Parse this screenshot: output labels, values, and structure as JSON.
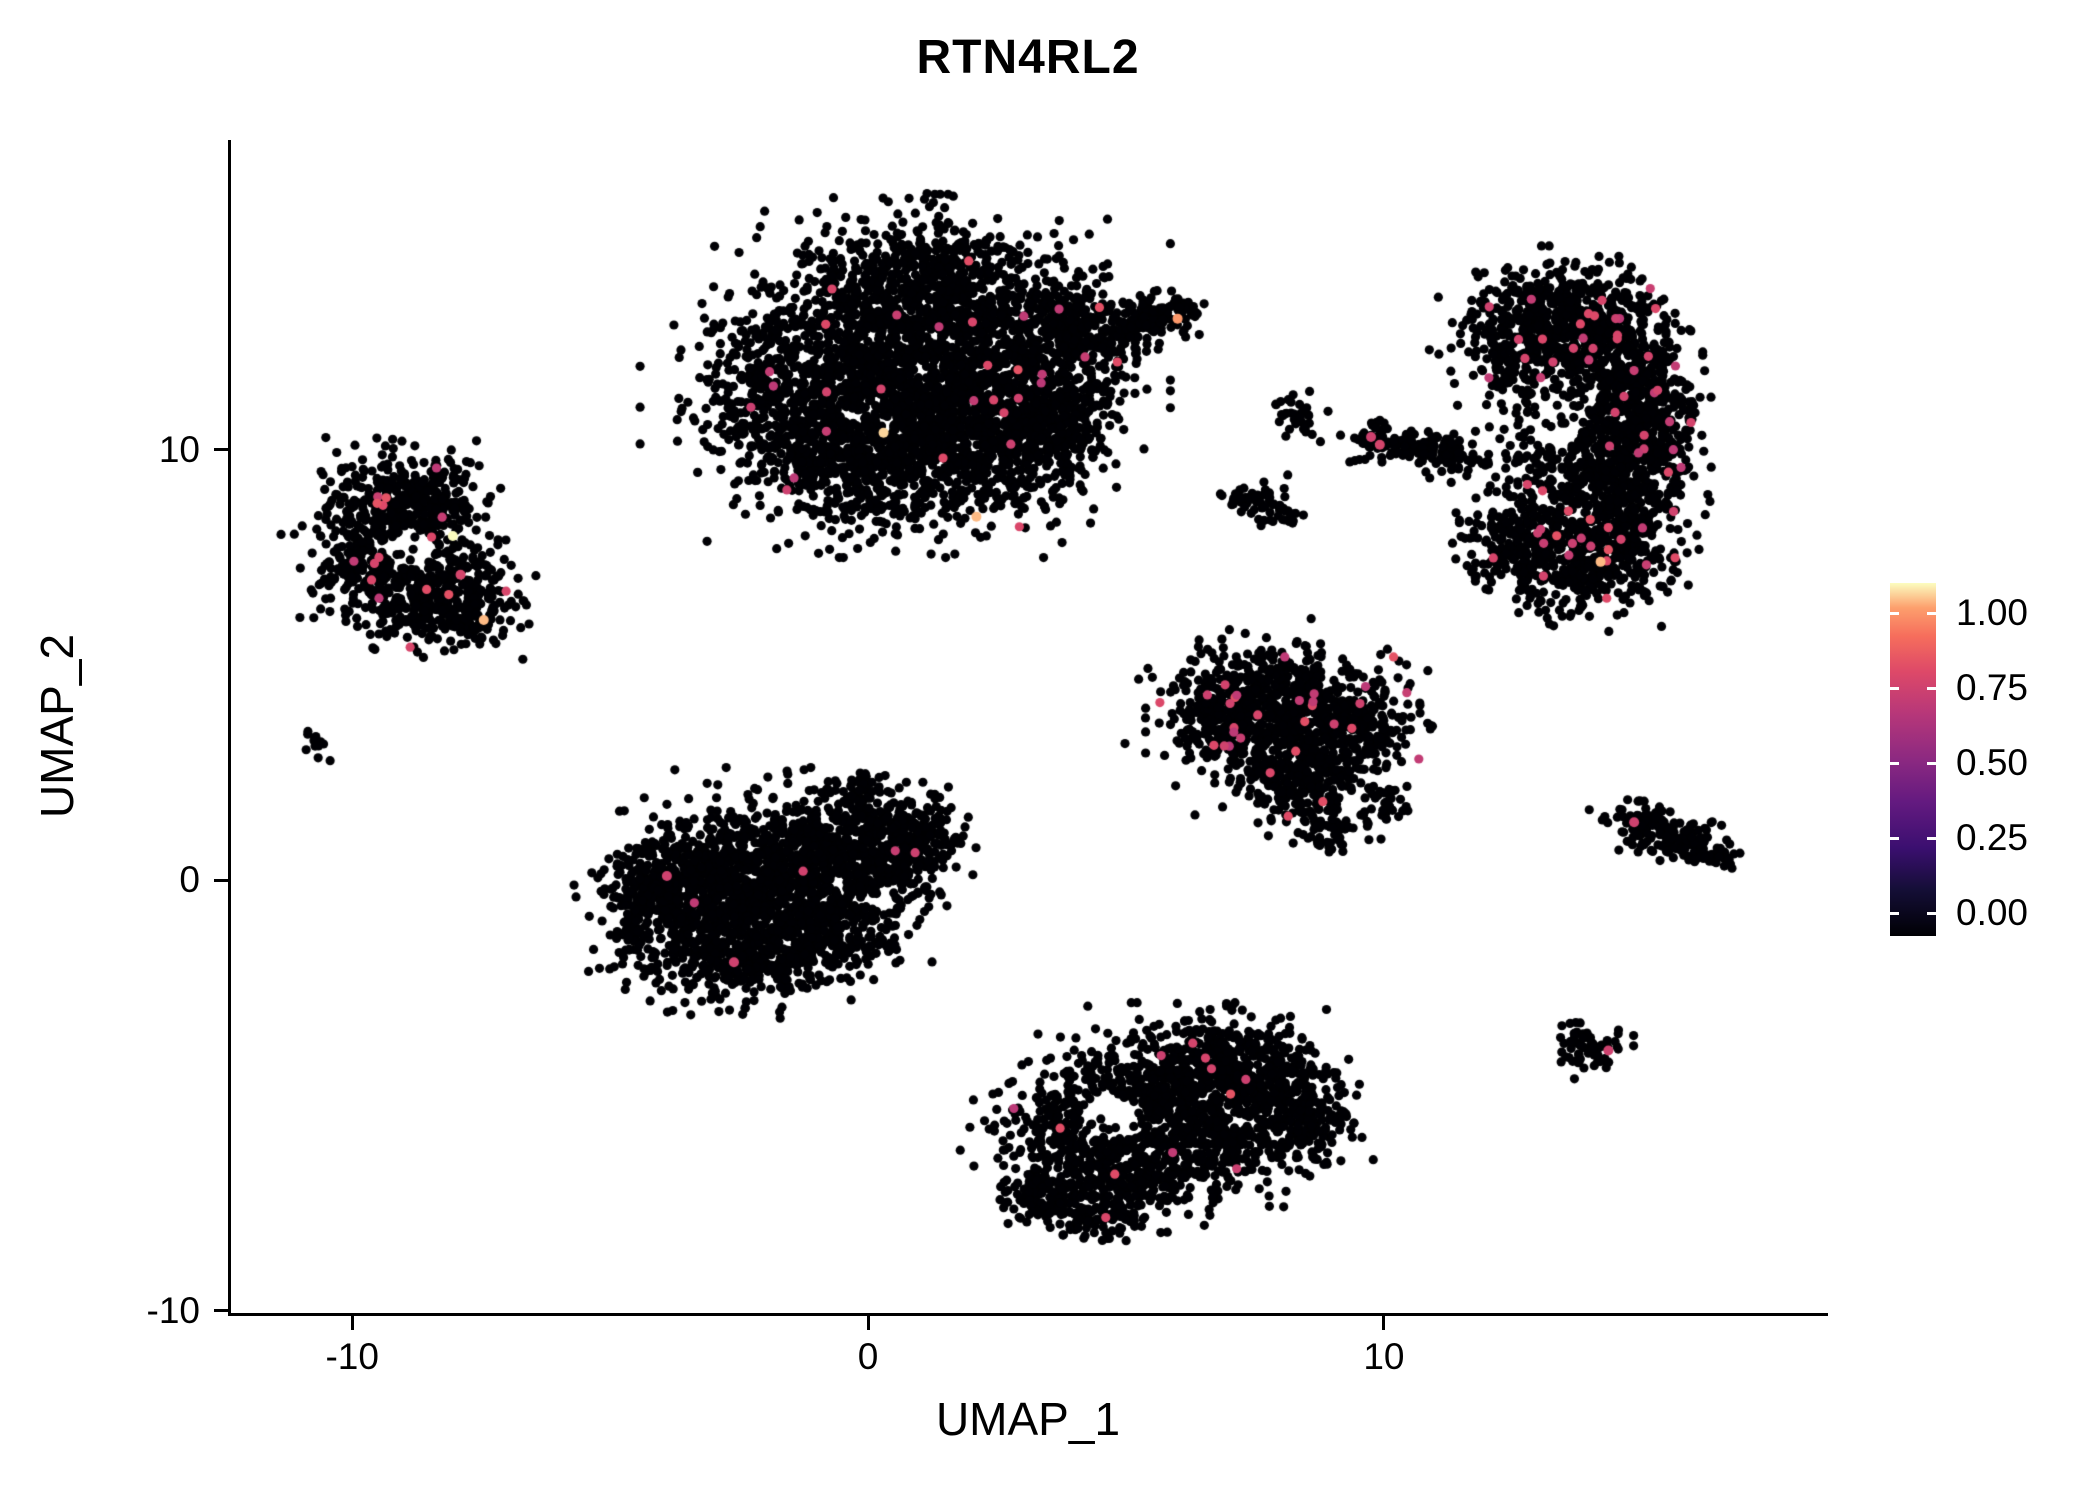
{
  "figure": {
    "background": "#ffffff"
  },
  "chart_data": {
    "type": "scatter",
    "title": "RTN4RL2",
    "xlabel": "UMAP_1",
    "ylabel": "UMAP_2",
    "xlim": [
      -12.35,
      18.55
    ],
    "ylim": [
      -10.05,
      17.2
    ],
    "x_ticks": [
      -10,
      0,
      10
    ],
    "y_ticks": [
      10,
      0,
      -10
    ],
    "grid": false,
    "point_radius_px": 4.6,
    "point_base_color": "#000004",
    "expr_value_range": [
      0.64,
      0.78
    ],
    "colorbar": {
      "position": "right",
      "ticks": [
        "1.00",
        "0.75",
        "0.50",
        "0.25",
        "0.00"
      ],
      "stops": [
        [
          0.0,
          "#000004"
        ],
        [
          0.13,
          "#140E36"
        ],
        [
          0.25,
          "#3B0F70"
        ],
        [
          0.38,
          "#641A80"
        ],
        [
          0.5,
          "#8C2981"
        ],
        [
          0.63,
          "#B73779"
        ],
        [
          0.75,
          "#DE4968"
        ],
        [
          0.85,
          "#F66E5C"
        ],
        [
          0.93,
          "#FD9F6D"
        ],
        [
          1.0,
          "#FCFDBF"
        ]
      ]
    },
    "clusters": [
      {
        "name": "top-center",
        "lobes": [
          [
            -0.5,
            11.5,
            1.4,
            1.4,
            700
          ],
          [
            1.0,
            12.3,
            1.5,
            1.3,
            800
          ],
          [
            2.5,
            12.0,
            1.2,
            1.2,
            600
          ],
          [
            1.5,
            10.3,
            1.5,
            1.0,
            550
          ],
          [
            0.0,
            9.6,
            1.0,
            0.7,
            300
          ],
          [
            2.8,
            9.9,
            0.8,
            0.7,
            250
          ],
          [
            1.2,
            13.9,
            1.2,
            0.7,
            350
          ],
          [
            -1.8,
            10.8,
            0.7,
            0.8,
            200
          ],
          [
            3.6,
            11.0,
            0.6,
            0.7,
            150
          ],
          [
            3.9,
            12.8,
            0.5,
            0.5,
            120
          ],
          [
            4.6,
            12.6,
            0.45,
            0.35,
            90
          ],
          [
            5.3,
            13.0,
            0.4,
            0.25,
            70
          ],
          [
            5.9,
            13.3,
            0.3,
            0.2,
            50
          ],
          [
            1.3,
            15.7,
            0.3,
            0.25,
            6
          ]
        ],
        "holes": [],
        "expr_frac": 0.01
      },
      {
        "name": "left",
        "lobes": [
          [
            -9.4,
            8.5,
            0.7,
            0.7,
            260
          ],
          [
            -8.5,
            8.9,
            0.55,
            0.5,
            180
          ],
          [
            -9.7,
            7.3,
            0.6,
            0.55,
            200
          ],
          [
            -8.2,
            7.1,
            0.6,
            0.6,
            200
          ],
          [
            -7.7,
            6.3,
            0.45,
            0.45,
            130
          ],
          [
            -8.9,
            6.3,
            0.55,
            0.4,
            130
          ]
        ],
        "holes": [
          [
            -8.9,
            7.7,
            0.5,
            0.45
          ]
        ],
        "expr_frac": 0.018
      },
      {
        "name": "tiny-left",
        "lobes": [
          [
            -10.75,
            3.2,
            0.12,
            0.15,
            14
          ]
        ],
        "holes": [],
        "expr_frac": 0
      },
      {
        "name": "center-left",
        "lobes": [
          [
            -3.4,
            -0.6,
            0.9,
            0.9,
            450
          ],
          [
            -2.2,
            0.1,
            1.0,
            0.9,
            500
          ],
          [
            -0.9,
            0.3,
            0.9,
            0.8,
            450
          ],
          [
            0.3,
            0.6,
            0.7,
            0.6,
            280
          ],
          [
            1.0,
            1.1,
            0.4,
            0.4,
            120
          ],
          [
            -2.4,
            -1.8,
            0.9,
            0.5,
            280
          ],
          [
            -1.0,
            -1.2,
            0.8,
            0.5,
            250
          ],
          [
            -4.3,
            -0.2,
            0.5,
            0.6,
            150
          ],
          [
            -0.3,
            2.0,
            0.3,
            0.3,
            60
          ]
        ],
        "holes": [],
        "expr_frac": 0.0015
      },
      {
        "name": "mid-right",
        "lobes": [
          [
            7.5,
            4.4,
            0.9,
            0.6,
            280
          ],
          [
            8.7,
            4.1,
            0.8,
            0.6,
            250
          ],
          [
            7.9,
            3.2,
            0.9,
            0.6,
            280
          ],
          [
            8.4,
            2.2,
            0.6,
            0.5,
            160
          ],
          [
            9.5,
            3.4,
            0.5,
            0.5,
            130
          ],
          [
            6.7,
            3.7,
            0.4,
            0.4,
            100
          ],
          [
            8.9,
            1.2,
            0.3,
            0.3,
            60
          ],
          [
            10.0,
            1.8,
            0.25,
            0.3,
            40
          ]
        ],
        "holes": [],
        "expr_frac": 0.022
      },
      {
        "name": "bottom-center",
        "lobes": [
          [
            4.2,
            -5.9,
            0.9,
            0.8,
            380
          ],
          [
            5.6,
            -4.8,
            1.0,
            0.7,
            420
          ],
          [
            6.9,
            -4.3,
            0.8,
            0.6,
            300
          ],
          [
            7.9,
            -4.9,
            0.6,
            0.6,
            220
          ],
          [
            5.1,
            -6.9,
            0.8,
            0.5,
            240
          ],
          [
            6.6,
            -6.1,
            0.8,
            0.6,
            280
          ],
          [
            3.4,
            -7.3,
            0.5,
            0.4,
            110
          ],
          [
            8.6,
            -5.7,
            0.5,
            0.5,
            130
          ],
          [
            4.4,
            -7.8,
            0.5,
            0.3,
            90
          ]
        ],
        "holes": [
          [
            4.7,
            -5.5,
            0.6,
            0.55
          ]
        ],
        "expr_frac": 0.008
      },
      {
        "name": "right-tall",
        "lobes": [
          [
            12.7,
            12.5,
            0.65,
            0.8,
            300
          ],
          [
            13.6,
            13.1,
            0.8,
            0.6,
            300
          ],
          [
            14.5,
            12.4,
            0.6,
            0.7,
            280
          ],
          [
            14.9,
            11.2,
            0.55,
            0.8,
            280
          ],
          [
            15.0,
            9.8,
            0.55,
            0.9,
            300
          ],
          [
            14.5,
            8.4,
            0.65,
            0.8,
            300
          ],
          [
            13.8,
            7.3,
            0.75,
            0.6,
            280
          ],
          [
            13.6,
            9.6,
            0.6,
            0.9,
            250
          ],
          [
            12.5,
            7.9,
            0.5,
            0.6,
            180
          ]
        ],
        "holes": [
          [
            13.4,
            10.6,
            0.45,
            0.6
          ]
        ],
        "expr_frac": 0.022
      },
      {
        "name": "small-mid-a",
        "lobes": [
          [
            8.3,
            10.8,
            0.22,
            0.28,
            35
          ]
        ],
        "holes": [],
        "expr_frac": 0
      },
      {
        "name": "small-mid-b",
        "lobes": [
          [
            9.9,
            10.25,
            0.28,
            0.22,
            50
          ],
          [
            10.7,
            10.05,
            0.45,
            0.2,
            70
          ],
          [
            11.5,
            9.75,
            0.3,
            0.18,
            40
          ]
        ],
        "holes": [],
        "expr_frac": 0
      },
      {
        "name": "small-mid-c",
        "lobes": [
          [
            7.35,
            8.9,
            0.3,
            0.22,
            40
          ],
          [
            7.95,
            8.6,
            0.25,
            0.18,
            30
          ]
        ],
        "holes": [],
        "expr_frac": 0
      },
      {
        "name": "right-small",
        "lobes": [
          [
            15.1,
            1.2,
            0.4,
            0.3,
            90
          ],
          [
            15.9,
            0.9,
            0.35,
            0.22,
            70
          ],
          [
            16.5,
            0.55,
            0.2,
            0.12,
            30
          ]
        ],
        "holes": [],
        "expr_frac": 0
      },
      {
        "name": "bottom-right-small",
        "lobes": [
          [
            14.0,
            -3.85,
            0.3,
            0.3,
            70
          ]
        ],
        "holes": [],
        "expr_frac": 0
      }
    ],
    "highlights": [
      [
        -8.05,
        8.0,
        1.0
      ],
      [
        -7.45,
        6.05,
        0.95
      ],
      [
        -7.9,
        7.1,
        0.72
      ],
      [
        0.3,
        10.4,
        0.97
      ],
      [
        2.1,
        8.45,
        0.95
      ],
      [
        6.0,
        13.05,
        0.92
      ],
      [
        14.2,
        7.4,
        0.95
      ],
      [
        9.75,
        10.3,
        0.7
      ],
      [
        9.92,
        10.12,
        0.72
      ],
      [
        14.85,
        1.35,
        0.7
      ],
      [
        14.35,
        -3.95,
        0.7
      ],
      [
        -3.9,
        0.1,
        0.7
      ],
      [
        -2.6,
        -1.9,
        0.7
      ]
    ]
  }
}
